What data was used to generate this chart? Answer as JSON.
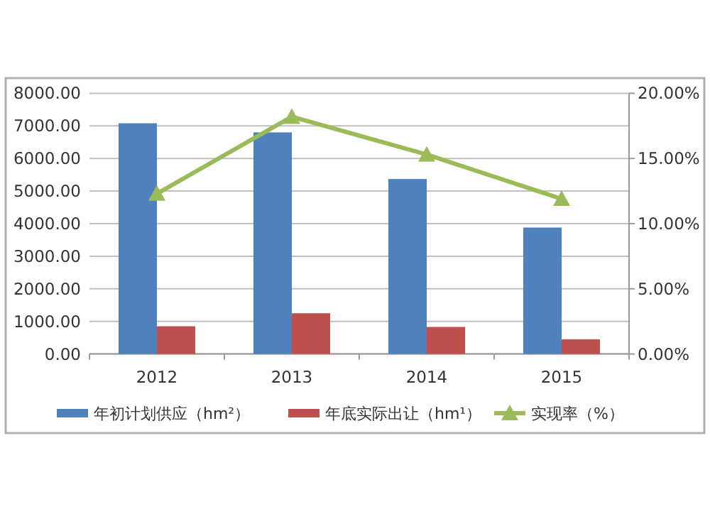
{
  "chart_data": {
    "type": "bar",
    "categories": [
      "2012",
      "2013",
      "2014",
      "2015"
    ],
    "series": [
      {
        "name": "年初计划供应（hm²）",
        "color": "#4f81bd",
        "values": [
          7080,
          6800,
          5370,
          3880
        ]
      },
      {
        "name": "年底实际出让（hm¹）",
        "color": "#c0504d",
        "values": [
          850,
          1250,
          830,
          450
        ]
      },
      {
        "name": "实现率（%）",
        "type": "line",
        "axis": "y2",
        "color": "#9bbb59",
        "marker": "triangle",
        "values": [
          12.3,
          18.2,
          15.3,
          11.9
        ]
      }
    ],
    "ylim": [
      0,
      8000
    ],
    "yticks": [
      {
        "value": 0,
        "label": "0.00"
      },
      {
        "value": 1000,
        "label": "1000.00"
      },
      {
        "value": 2000,
        "label": "2000.00"
      },
      {
        "value": 3000,
        "label": "3000.00"
      },
      {
        "value": 4000,
        "label": "4000.00"
      },
      {
        "value": 5000,
        "label": "5000.00"
      },
      {
        "value": 6000,
        "label": "6000.00"
      },
      {
        "value": 7000,
        "label": "7000.00"
      },
      {
        "value": 8000,
        "label": "8000.00"
      }
    ],
    "y2lim": [
      0,
      20
    ],
    "y2ticks": [
      {
        "value": 0,
        "label": "0.00%"
      },
      {
        "value": 5,
        "label": "5.00%"
      },
      {
        "value": 10,
        "label": "10.00%"
      },
      {
        "value": 15,
        "label": "15.00%"
      },
      {
        "value": 20,
        "label": "20.00%"
      }
    ],
    "grid": "y",
    "legend": "bottom"
  }
}
